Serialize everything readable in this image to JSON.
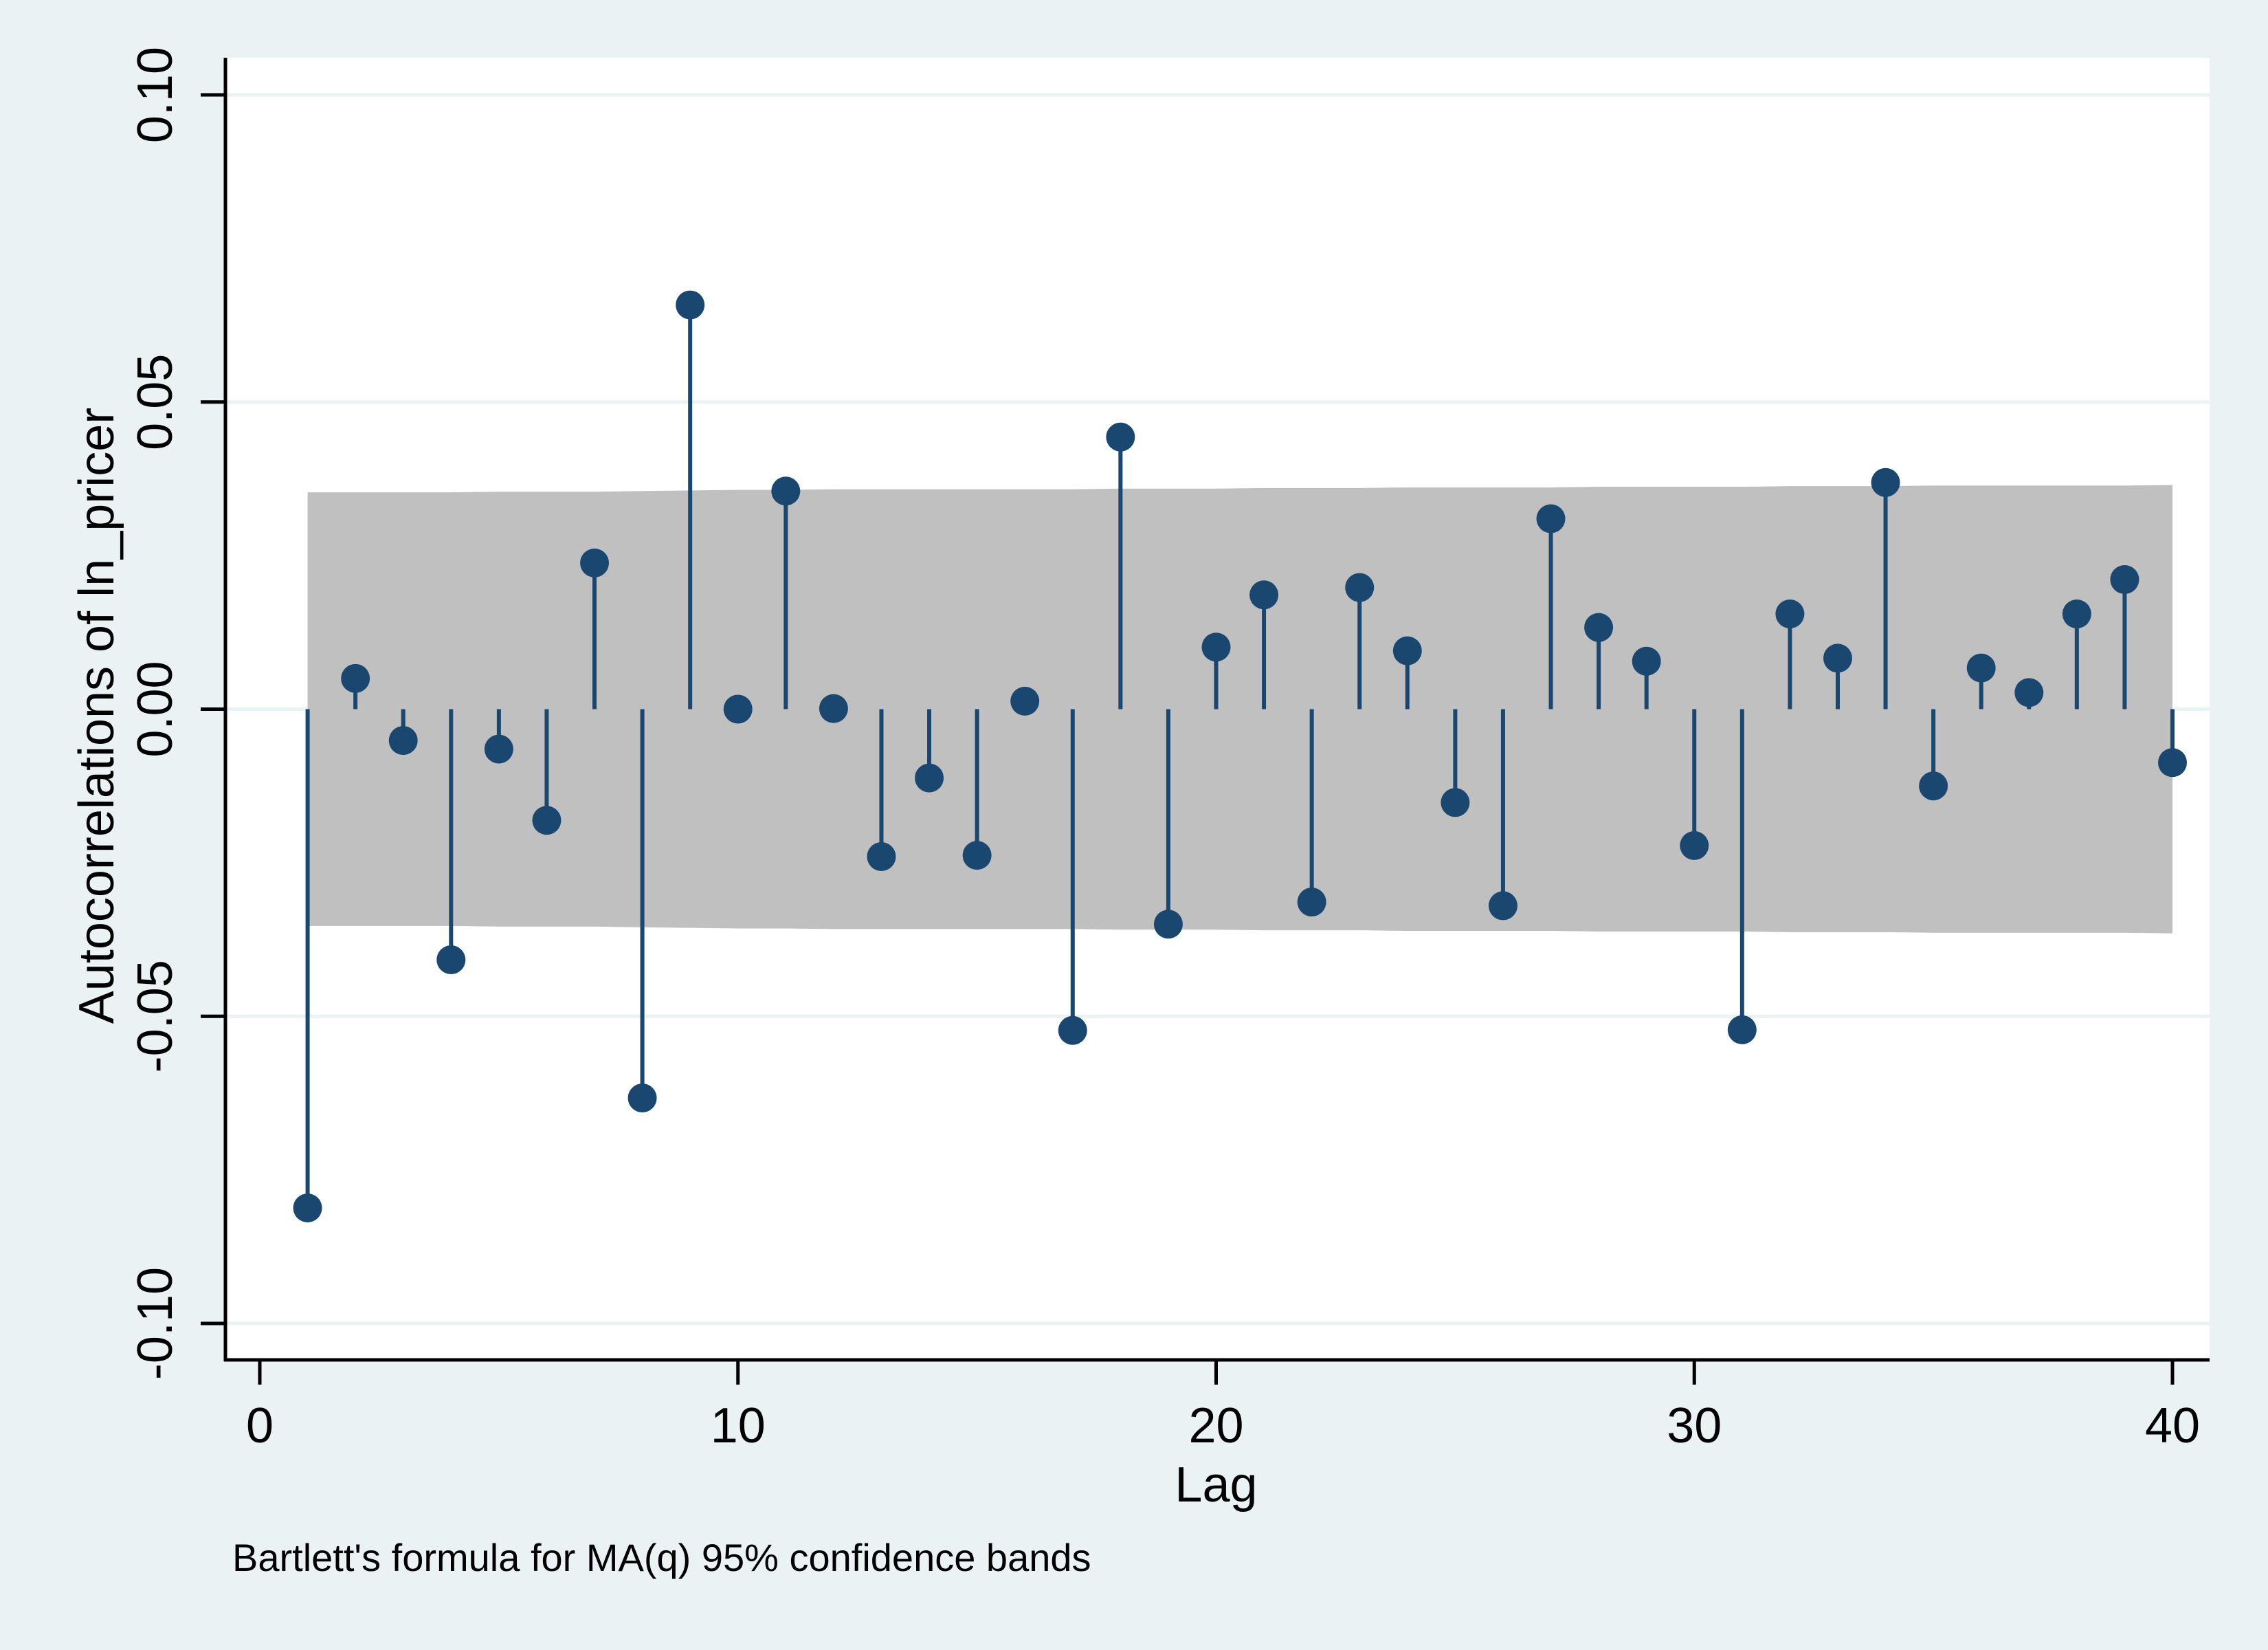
{
  "chart_data": {
    "type": "stem",
    "xlabel": "Lag",
    "ylabel": "Autocorrelations of ln_pricer",
    "note": "Bartlett's formula for MA(q) 95% confidence bands",
    "xlim": [
      0,
      40
    ],
    "ylim": [
      -0.1,
      0.1
    ],
    "xticks": [
      0,
      10,
      20,
      30,
      40
    ],
    "xtick_labels": [
      "0",
      "10",
      "20",
      "30",
      "40"
    ],
    "yticks": [
      -0.1,
      -0.05,
      0,
      0.05,
      0.1
    ],
    "ytick_labels": [
      "-0.10",
      "-0.05",
      "0.00",
      "0.05",
      "0.10"
    ],
    "grid": true,
    "colors": {
      "background": "#eaf2f3",
      "plot_background": "#ffffff",
      "gridline": "#eaf2f3",
      "band": "#c0c0c0",
      "series": "#1a476f"
    },
    "lags": [
      1,
      2,
      3,
      4,
      5,
      6,
      7,
      8,
      9,
      10,
      11,
      12,
      13,
      14,
      15,
      16,
      17,
      18,
      19,
      20,
      21,
      22,
      23,
      24,
      25,
      26,
      27,
      28,
      29,
      30,
      31,
      32,
      33,
      34,
      35,
      36,
      37,
      38,
      39,
      40
    ],
    "values": [
      -0.0812,
      0.005,
      -0.0051,
      -0.0408,
      -0.0065,
      -0.0181,
      0.0238,
      -0.0633,
      0.0658,
      0.0,
      0.0355,
      0.0001,
      -0.024,
      -0.0112,
      -0.0238,
      0.0013,
      -0.0523,
      0.0443,
      -0.035,
      0.0101,
      0.0186,
      -0.0314,
      0.0198,
      0.0095,
      -0.0152,
      -0.032,
      0.031,
      0.0133,
      0.0078,
      -0.0222,
      -0.0522,
      0.0155,
      0.0083,
      0.0369,
      -0.0125,
      0.0067,
      0.0027,
      0.0155,
      0.0211,
      -0.0087
    ],
    "conf_band": {
      "upper": [
        0.0353,
        0.0353,
        0.0353,
        0.0353,
        0.0354,
        0.0354,
        0.0354,
        0.0355,
        0.0356,
        0.0357,
        0.0357,
        0.0358,
        0.0358,
        0.0358,
        0.0358,
        0.0358,
        0.0358,
        0.0359,
        0.0359,
        0.0359,
        0.036,
        0.036,
        0.036,
        0.0361,
        0.0361,
        0.0361,
        0.0361,
        0.0362,
        0.0362,
        0.0362,
        0.0362,
        0.0363,
        0.0363,
        0.0363,
        0.0364,
        0.0364,
        0.0364,
        0.0364,
        0.0364,
        0.0365
      ],
      "lower": [
        -0.0353,
        -0.0353,
        -0.0353,
        -0.0353,
        -0.0354,
        -0.0354,
        -0.0354,
        -0.0355,
        -0.0356,
        -0.0357,
        -0.0357,
        -0.0358,
        -0.0358,
        -0.0358,
        -0.0358,
        -0.0358,
        -0.0358,
        -0.0359,
        -0.0359,
        -0.0359,
        -0.036,
        -0.036,
        -0.036,
        -0.0361,
        -0.0361,
        -0.0361,
        -0.0361,
        -0.0362,
        -0.0362,
        -0.0362,
        -0.0362,
        -0.0363,
        -0.0363,
        -0.0363,
        -0.0364,
        -0.0364,
        -0.0364,
        -0.0364,
        -0.0364,
        -0.0365
      ]
    }
  }
}
